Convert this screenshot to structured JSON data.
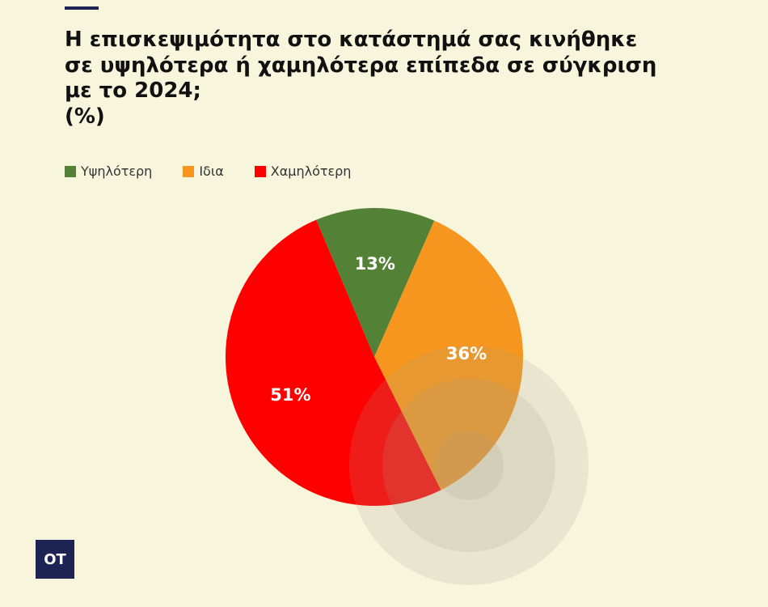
{
  "title": "Η επισκεψιμότητα στο κατάστημά σας κινήθηκε\nσε υψηλότερα ή χαμηλότερα επίπεδα σε σύγκριση\nμε το 2024;\n(%)",
  "logo": "OT",
  "chart_data": {
    "type": "pie",
    "title": "Η επισκεψιμότητα στο κατάστημά σας κινήθηκε σε υψηλότερα ή χαμηλότερα επίπεδα σε σύγκριση με το 2024; (%)",
    "legend_position": "top-left",
    "slices": [
      {
        "label": "Υψηλότερη",
        "value": 13,
        "value_label": "13%",
        "color": "#538135"
      },
      {
        "label": "Ιδια",
        "value": 36,
        "value_label": "36%",
        "color": "#f6961e"
      },
      {
        "label": "Χαμηλότερη",
        "value": 51,
        "value_label": "51%",
        "color": "#ff0000"
      }
    ]
  }
}
